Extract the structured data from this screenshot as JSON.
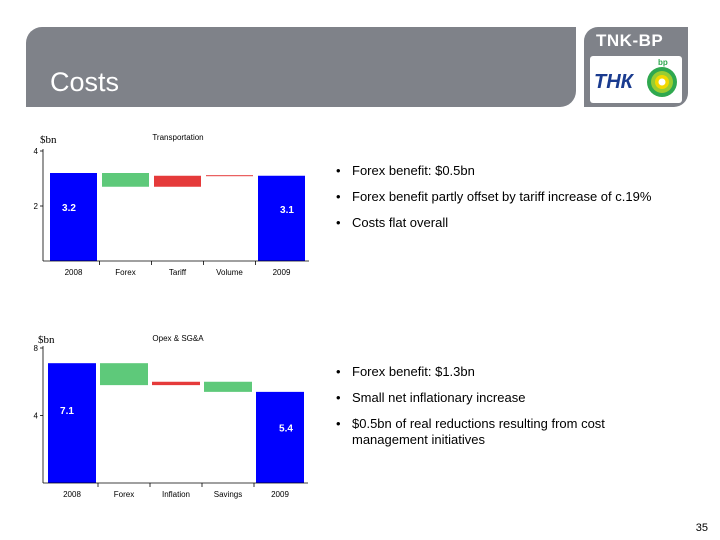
{
  "header": {
    "title": "Costs"
  },
  "logo": {
    "brand": "TNK-BP",
    "mark": "ТНК",
    "sub": "bp",
    "green": "#2fa84f",
    "yellow": "#f2d800"
  },
  "chart_data": [
    {
      "type": "bar",
      "title": "Transportation",
      "ylabel": "$bn",
      "ylim": [
        0,
        4
      ],
      "yticks": [
        2,
        4
      ],
      "categories": [
        "2008",
        "Forex",
        "Tariff",
        "Volume",
        "2009"
      ],
      "bars": [
        {
          "kind": "total",
          "start": 0,
          "end": 3.2,
          "label": "3.2",
          "color": "#0000ff"
        },
        {
          "kind": "change",
          "start": 3.2,
          "end": 2.7,
          "label": "",
          "color": "#5ec97a"
        },
        {
          "kind": "change",
          "start": 2.7,
          "end": 3.1,
          "label": "",
          "color": "#e53a3a"
        },
        {
          "kind": "change",
          "start": 3.1,
          "end": 3.12,
          "label": "",
          "color": "#e53a3a"
        },
        {
          "kind": "total",
          "start": 0,
          "end": 3.1,
          "label": "3.1",
          "color": "#0000ff"
        }
      ]
    },
    {
      "type": "bar",
      "title": "Opex & SG&A",
      "ylabel": "$bn",
      "ylim": [
        0,
        8
      ],
      "yticks": [
        4,
        8
      ],
      "categories": [
        "2008",
        "Forex",
        "Inflation",
        "Savings",
        "2009"
      ],
      "bars": [
        {
          "kind": "total",
          "start": 0,
          "end": 7.1,
          "label": "7.1",
          "color": "#0000ff"
        },
        {
          "kind": "change",
          "start": 7.1,
          "end": 5.8,
          "label": "",
          "color": "#5ec97a"
        },
        {
          "kind": "change",
          "start": 5.8,
          "end": 6.0,
          "label": "",
          "color": "#e53a3a"
        },
        {
          "kind": "change",
          "start": 6.0,
          "end": 5.4,
          "label": "",
          "color": "#5ec97a"
        },
        {
          "kind": "total",
          "start": 0,
          "end": 5.4,
          "label": "5.4",
          "color": "#0000ff"
        }
      ]
    }
  ],
  "bullets_transport": [
    "Forex benefit: $0.5bn",
    "Forex benefit partly offset by tariff increase of c.19%",
    "Costs flat overall"
  ],
  "bullets_opex": [
    "Forex benefit: $1.3bn",
    "Small net inflationary increase",
    "$0.5bn of real reductions resulting from cost management initiatives"
  ],
  "page_number": "35"
}
